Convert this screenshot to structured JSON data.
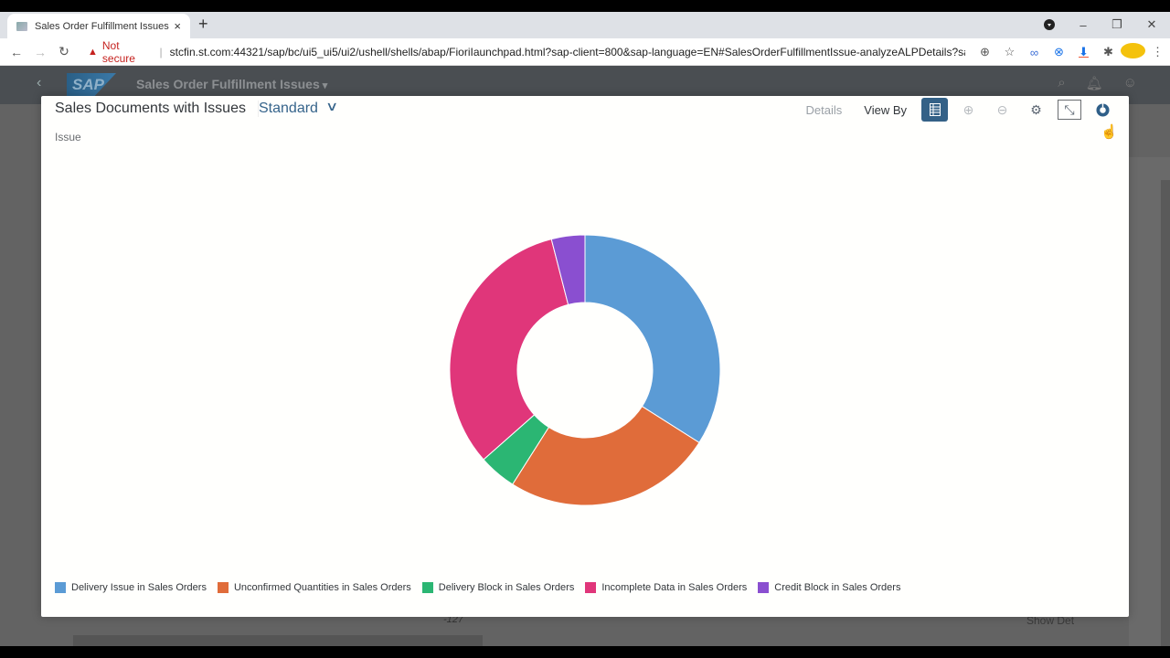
{
  "browser": {
    "tab_title": "Sales Order Fulfillment Issues",
    "tab_close": "×",
    "new_tab": "+",
    "security_label": "Not secure",
    "url": "stcfin.st.com:44321/sap/bc/ui5_ui5/ui2/ushell/shells/abap/FioriIaunchpad.html?sap-client=800&sap-language=EN#SalesOrderFulfillmentIssue-analyzeALPDetails?sap...",
    "window_controls": {
      "minimize": "–",
      "maximize": "❐",
      "close": "✕"
    },
    "nav": {
      "back": "←",
      "forward": "→",
      "reload": "↻"
    },
    "icons": {
      "zoom": "⊕",
      "star": "☆",
      "link": "🔗",
      "ext": "⊗",
      "download": "⬇",
      "puzzle": "✱",
      "menu": "⋮"
    }
  },
  "shell": {
    "back": "‹",
    "logo": "SAP",
    "title": "Sales Order Fulfillment Issues",
    "icons": {
      "search": "⌕",
      "bell": "🔔",
      "user": "👤"
    },
    "background_texts": [
      "-127",
      "Show Det"
    ]
  },
  "dialog": {
    "title": "Sales Documents with Issues",
    "variant": "Standard",
    "variant_chevron": "∨",
    "dimension_label": "Issue",
    "toolbar": {
      "details": "Details",
      "view_by": "View By",
      "table_icon": "▤",
      "zoom_in": "⊕",
      "zoom_out": "⊖",
      "settings": "⚙",
      "fullscreen_exit": "⤡",
      "chart_type": "◕"
    }
  },
  "chart_data": {
    "type": "pie",
    "subtype": "donut",
    "title": "Sales Documents with Issues",
    "dimension": "Issue",
    "categories": [
      "Delivery Issue in Sales Orders",
      "Unconfirmed Quantities in Sales Orders",
      "Delivery Block in Sales Orders",
      "Incomplete Data in Sales Orders",
      "Credit Block in Sales Orders"
    ],
    "values": [
      34,
      25,
      4.5,
      32.5,
      4
    ],
    "value_unit": "approx. % of total (estimated from slice angles)",
    "colors": [
      "#5b9bd5",
      "#e06c3a",
      "#2bb673",
      "#e0367a",
      "#8a4fd0"
    ],
    "legend_position": "bottom",
    "data_labels": false
  }
}
